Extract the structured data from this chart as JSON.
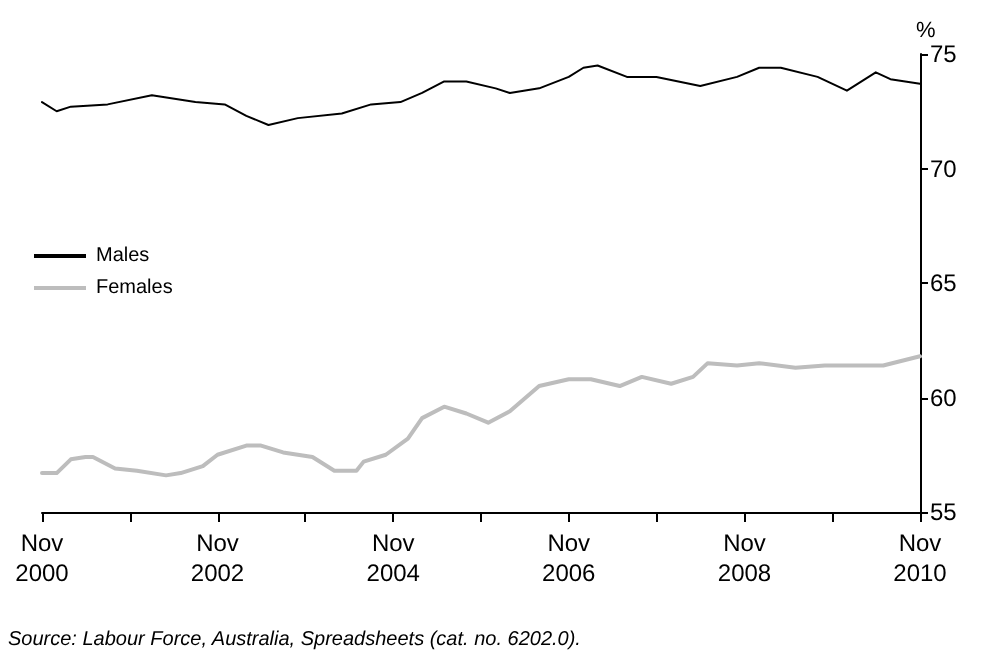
{
  "chart_data": {
    "type": "line",
    "ylabel": "%",
    "xlim": [
      "2000-11",
      "2010-11"
    ],
    "xticks": [
      {
        "value": "2000-11",
        "label": "Nov\n2000"
      },
      {
        "value": "2001-11",
        "label": null
      },
      {
        "value": "2002-11",
        "label": "Nov\n2002"
      },
      {
        "value": "2003-11",
        "label": null
      },
      {
        "value": "2004-11",
        "label": "Nov\n2004"
      },
      {
        "value": "2005-11",
        "label": null
      },
      {
        "value": "2006-11",
        "label": "Nov\n2006"
      },
      {
        "value": "2007-11",
        "label": null
      },
      {
        "value": "2008-11",
        "label": "Nov\n2008"
      },
      {
        "value": "2009-11",
        "label": null
      },
      {
        "value": "2010-11",
        "label": "Nov\n2010"
      }
    ],
    "ylim": [
      55,
      75
    ],
    "yticks": [
      55,
      60,
      65,
      70,
      75
    ],
    "series": [
      {
        "name": "Males",
        "color": "#000000",
        "x": [
          "2000-11",
          "2001-01",
          "2001-03",
          "2001-08",
          "2002-02",
          "2002-08",
          "2002-12",
          "2003-03",
          "2003-06",
          "2003-10",
          "2004-04",
          "2004-08",
          "2004-12",
          "2005-03",
          "2005-06",
          "2005-09",
          "2006-01",
          "2006-03",
          "2006-07",
          "2006-11",
          "2007-01",
          "2007-03",
          "2007-07",
          "2007-11",
          "2008-05",
          "2008-10",
          "2009-01",
          "2009-04",
          "2009-09",
          "2010-01",
          "2010-05",
          "2010-07",
          "2010-11"
        ],
        "values": [
          72.9,
          72.5,
          72.7,
          72.8,
          73.2,
          72.9,
          72.8,
          72.3,
          71.9,
          72.2,
          72.4,
          72.8,
          72.9,
          73.3,
          73.8,
          73.8,
          73.5,
          73.3,
          73.5,
          74.0,
          74.4,
          74.5,
          74.0,
          74.0,
          73.6,
          74.0,
          74.4,
          74.4,
          74.0,
          73.4,
          74.2,
          73.9,
          73.7
        ]
      },
      {
        "name": "Females",
        "color": "#bdbdbd",
        "x": [
          "2000-11",
          "2001-01",
          "2001-03",
          "2001-05",
          "2001-06",
          "2001-09",
          "2001-12",
          "2002-04",
          "2002-06",
          "2002-09",
          "2002-11",
          "2003-03",
          "2003-05",
          "2003-08",
          "2003-12",
          "2004-03",
          "2004-06",
          "2004-07",
          "2004-10",
          "2005-01",
          "2005-03",
          "2005-06",
          "2005-09",
          "2005-12",
          "2006-03",
          "2006-07",
          "2006-11",
          "2007-02",
          "2007-06",
          "2007-09",
          "2008-01",
          "2008-04",
          "2008-06",
          "2008-10",
          "2009-01",
          "2009-06",
          "2009-10",
          "2010-03",
          "2010-06",
          "2010-11"
        ],
        "values": [
          56.7,
          56.7,
          57.3,
          57.4,
          57.4,
          56.9,
          56.8,
          56.6,
          56.7,
          57.0,
          57.5,
          57.9,
          57.9,
          57.6,
          57.4,
          56.8,
          56.8,
          57.2,
          57.5,
          58.2,
          59.1,
          59.6,
          59.3,
          58.9,
          59.4,
          60.5,
          60.8,
          60.8,
          60.5,
          60.9,
          60.6,
          60.9,
          61.5,
          61.4,
          61.5,
          61.3,
          61.4,
          61.4,
          61.4,
          61.8
        ]
      }
    ],
    "legend": "left",
    "grid": false,
    "marker": "none",
    "line_style": "solid",
    "annotations": [
      "Source: Labour Force, Australia, Spreadsheets (cat. no. 6202.0)."
    ]
  }
}
